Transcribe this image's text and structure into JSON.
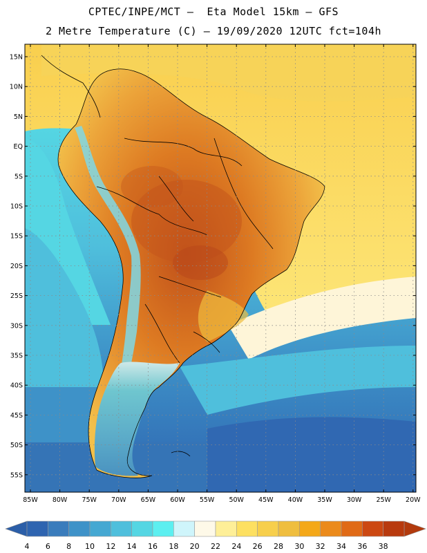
{
  "header": {
    "line1": "CPTEC/INPE/MCT –  Eta Model 15km – GFS",
    "line2": "2 Metre Temperature (C) – 19/09/2020 12UTC fct=104h"
  },
  "map": {
    "lat_labels": [
      "15N",
      "10N",
      "5N",
      "EQ",
      "5S",
      "10S",
      "15S",
      "20S",
      "25S",
      "30S",
      "35S",
      "40S",
      "45S",
      "50S",
      "55S"
    ],
    "lon_labels": [
      "85W",
      "80W",
      "75W",
      "70W",
      "65W",
      "60W",
      "55W",
      "50W",
      "45W",
      "40W",
      "35W",
      "30W",
      "25W",
      "20W"
    ]
  },
  "colorbar": {
    "values": [
      "4",
      "6",
      "8",
      "10",
      "12",
      "14",
      "16",
      "18",
      "20",
      "22",
      "24",
      "26",
      "28",
      "30",
      "32",
      "34",
      "36",
      "38"
    ],
    "colors": [
      "#2e64b0",
      "#3a7cbc",
      "#3e92c8",
      "#45a8d2",
      "#4fbfdc",
      "#55d6e3",
      "#5ceff0",
      "#cff5fb",
      "#fef9e8",
      "#feef98",
      "#fde061",
      "#f7cf4c",
      "#efbe3f",
      "#f4a818",
      "#eb8a1b",
      "#e06a16",
      "#cc4812",
      "#b83a0e"
    ],
    "left_arrow_color": "#2b5ea8",
    "right_arrow_color": "#b23a0d"
  }
}
